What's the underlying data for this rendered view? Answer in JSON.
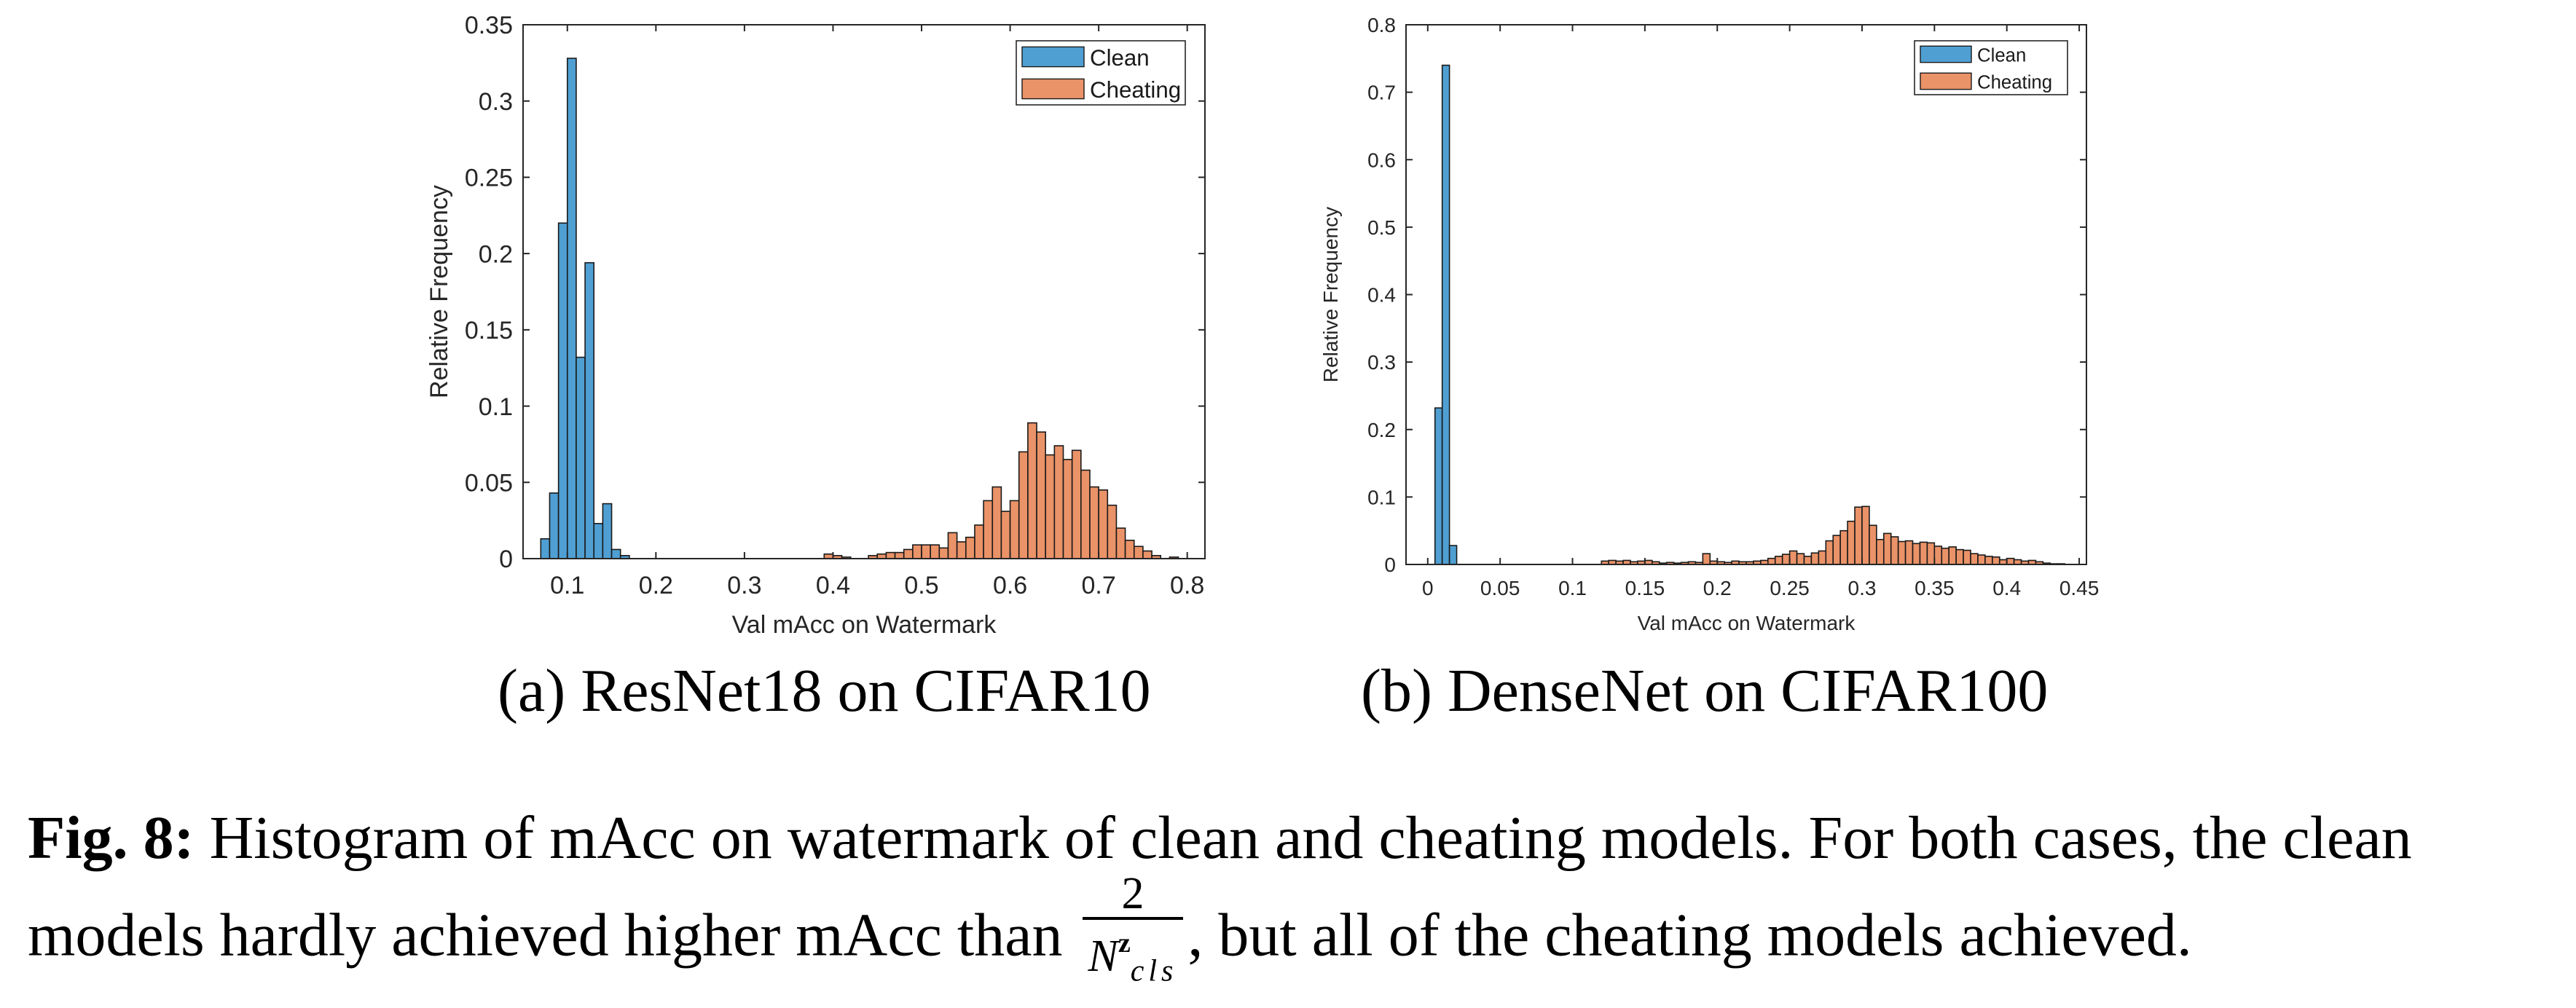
{
  "chart_data": [
    {
      "type": "bar",
      "subtitle": "(a) ResNet18 on CIFAR10",
      "xlabel": "Val mAcc on Watermark",
      "ylabel": "Relative Frequency",
      "xlim": [
        0.05,
        0.82
      ],
      "ylim": [
        0,
        0.35
      ],
      "bin_width": 0.01,
      "xticks": [
        "0.1",
        "0.2",
        "0.3",
        "0.4",
        "0.5",
        "0.6",
        "0.7",
        "0.8"
      ],
      "xtick_values": [
        0.1,
        0.2,
        0.3,
        0.4,
        0.5,
        0.6,
        0.7,
        0.8
      ],
      "yticks": [
        "0",
        "0.05",
        "0.1",
        "0.15",
        "0.2",
        "0.25",
        "0.3",
        "0.35"
      ],
      "ytick_values": [
        0,
        0.05,
        0.1,
        0.15,
        0.2,
        0.25,
        0.3,
        0.35
      ],
      "legend_position": "top-right",
      "grid": false,
      "series": [
        {
          "name": "Clean",
          "color": "#4f9fd2",
          "bin_starts": [
            0.07,
            0.08,
            0.09,
            0.1,
            0.11,
            0.12,
            0.13,
            0.14,
            0.15,
            0.16
          ],
          "values": [
            0.013,
            0.043,
            0.22,
            0.328,
            0.132,
            0.194,
            0.023,
            0.036,
            0.006,
            0.002
          ]
        },
        {
          "name": "Cheating",
          "color": "#ea9268",
          "bin_starts": [
            0.39,
            0.4,
            0.41,
            0.44,
            0.45,
            0.46,
            0.47,
            0.48,
            0.49,
            0.5,
            0.51,
            0.52,
            0.53,
            0.54,
            0.55,
            0.56,
            0.57,
            0.58,
            0.59,
            0.6,
            0.61,
            0.62,
            0.63,
            0.64,
            0.65,
            0.66,
            0.67,
            0.68,
            0.69,
            0.7,
            0.71,
            0.72,
            0.73,
            0.74,
            0.75,
            0.76,
            0.78
          ],
          "values": [
            0.003,
            0.002,
            0.001,
            0.002,
            0.003,
            0.004,
            0.004,
            0.006,
            0.009,
            0.009,
            0.009,
            0.007,
            0.017,
            0.011,
            0.014,
            0.022,
            0.038,
            0.047,
            0.031,
            0.038,
            0.07,
            0.089,
            0.083,
            0.068,
            0.074,
            0.065,
            0.071,
            0.058,
            0.047,
            0.045,
            0.035,
            0.02,
            0.012,
            0.008,
            0.005,
            0.002,
            0.001
          ]
        }
      ]
    },
    {
      "type": "bar",
      "subtitle": "(b) DenseNet on CIFAR100",
      "xlabel": "Val mAcc on Watermark",
      "ylabel": "Relative Frequency",
      "xlim": [
        -0.015,
        0.455
      ],
      "ylim": [
        0,
        0.8
      ],
      "bin_width": 0.005,
      "xticks": [
        "0",
        "0.05",
        "0.1",
        "0.15",
        "0.2",
        "0.25",
        "0.3",
        "0.35",
        "0.4",
        "0.45"
      ],
      "xtick_values": [
        0,
        0.05,
        0.1,
        0.15,
        0.2,
        0.25,
        0.3,
        0.35,
        0.4,
        0.45
      ],
      "yticks": [
        "0",
        "0.1",
        "0.2",
        "0.3",
        "0.4",
        "0.5",
        "0.6",
        "0.7",
        "0.8"
      ],
      "ytick_values": [
        0,
        0.1,
        0.2,
        0.3,
        0.4,
        0.5,
        0.6,
        0.7,
        0.8
      ],
      "legend_position": "top-right",
      "grid": false,
      "series": [
        {
          "name": "Clean",
          "color": "#4f9fd2",
          "bin_starts": [
            0.005,
            0.01,
            0.015
          ],
          "values": [
            0.232,
            0.74,
            0.028
          ]
        },
        {
          "name": "Cheating",
          "color": "#ea9268",
          "bin_starts": [
            0.12,
            0.125,
            0.13,
            0.135,
            0.14,
            0.145,
            0.15,
            0.155,
            0.16,
            0.165,
            0.17,
            0.175,
            0.18,
            0.185,
            0.19,
            0.195,
            0.2,
            0.205,
            0.21,
            0.215,
            0.22,
            0.225,
            0.23,
            0.235,
            0.24,
            0.245,
            0.25,
            0.255,
            0.26,
            0.265,
            0.27,
            0.275,
            0.28,
            0.285,
            0.29,
            0.295,
            0.3,
            0.305,
            0.31,
            0.315,
            0.32,
            0.325,
            0.33,
            0.335,
            0.34,
            0.345,
            0.35,
            0.355,
            0.36,
            0.365,
            0.37,
            0.375,
            0.38,
            0.385,
            0.39,
            0.395,
            0.4,
            0.405,
            0.41,
            0.415,
            0.42,
            0.425,
            0.43,
            0.435
          ],
          "values": [
            0.005,
            0.006,
            0.005,
            0.006,
            0.004,
            0.005,
            0.006,
            0.004,
            0.002,
            0.003,
            0.002,
            0.003,
            0.004,
            0.003,
            0.016,
            0.005,
            0.004,
            0.003,
            0.005,
            0.004,
            0.004,
            0.005,
            0.006,
            0.009,
            0.012,
            0.015,
            0.02,
            0.016,
            0.012,
            0.017,
            0.02,
            0.035,
            0.043,
            0.05,
            0.064,
            0.085,
            0.086,
            0.058,
            0.037,
            0.046,
            0.041,
            0.034,
            0.035,
            0.031,
            0.033,
            0.032,
            0.027,
            0.024,
            0.026,
            0.022,
            0.021,
            0.016,
            0.014,
            0.012,
            0.011,
            0.007,
            0.009,
            0.007,
            0.005,
            0.006,
            0.004,
            0.002,
            0.001,
            0.001
          ]
        }
      ]
    }
  ],
  "caption": {
    "label": "Fig. 8:",
    "text_before": " Histogram of mAcc on watermark of clean and cheating models. For both cases, the clean models hardly achieved higher mAcc than ",
    "frac_num": "2",
    "frac_den_base": "N",
    "frac_den_sup": "z",
    "frac_den_sub": "cls",
    "text_after": ", but all of the cheating models achieved."
  }
}
